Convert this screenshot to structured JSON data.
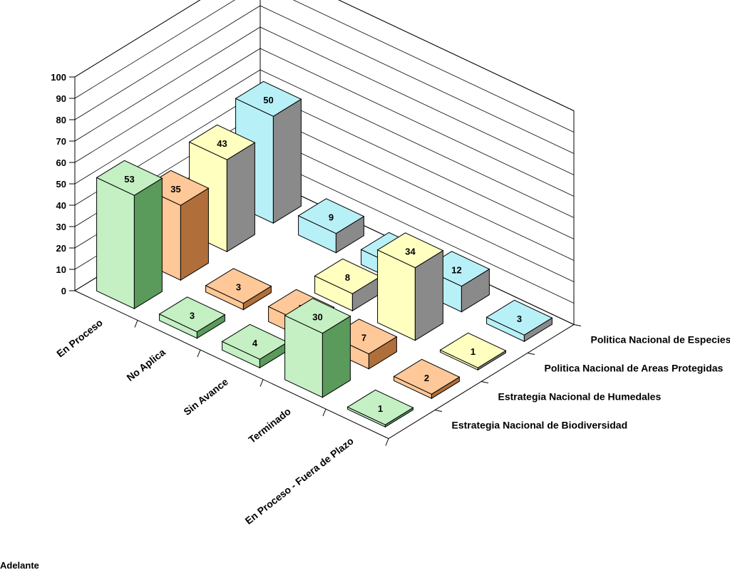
{
  "chart_data": {
    "type": "bar",
    "subtype": "3d-column",
    "categories": [
      "En Proceso",
      "No Aplica",
      "Sin Avance",
      "Terminado",
      "En Proceso - Fuera de Plazo"
    ],
    "category_labels_as_shown": [
      "En Proceso",
      "No Aplica",
      "Sin Avance",
      "Terminado",
      "En Proceso - Fuera de Plazo"
    ],
    "series": [
      {
        "name": "Estrategia Nacional de Biodiversidad",
        "color": "#c4f0c4",
        "dark": "#5a9a5a",
        "values": [
          53,
          3,
          4,
          30,
          1
        ]
      },
      {
        "name": "Estrategia Nacional de Humedales",
        "color": "#ffc898",
        "dark": "#b06f3a",
        "values": [
          35,
          3,
          7,
          7,
          2
        ]
      },
      {
        "name": "Politica Nacional de Areas Protegidas",
        "color": "#ffffc0",
        "dark": "#8a8a8a",
        "values": [
          43,
          null,
          8,
          34,
          1
        ]
      },
      {
        "name": "Politica Nacional de Especies Amenazadas",
        "color": "#b8f0f8",
        "dark": "#8a8a8a",
        "values": [
          50,
          9,
          7,
          12,
          3
        ]
      }
    ],
    "yticks": [
      "0",
      "10",
      "20",
      "30",
      "40",
      "50",
      "60",
      "70",
      "80",
      "90",
      "100"
    ],
    "ylim": [
      0,
      100
    ],
    "grid": true,
    "legend": "none (series labels on depth axis, right side)"
  },
  "footer_text": "Adelante"
}
